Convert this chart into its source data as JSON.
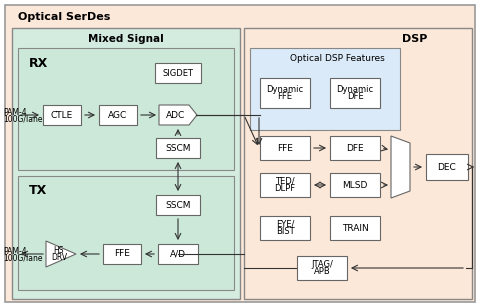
{
  "title": "Optical SerDes",
  "mixed_signal_label": "Mixed Signal",
  "dsp_label": "DSP",
  "rx_label": "RX",
  "tx_label": "TX",
  "optical_dsp_label": "Optical DSP Features",
  "bg_outer": "#fce8d8",
  "bg_mixed": "#d4ece0",
  "bg_dsp": "#fce8d8",
  "bg_optical_dsp": "#daeaf8",
  "box_fc": "#ffffff",
  "box_ec": "#666666",
  "line_color": "#333333"
}
